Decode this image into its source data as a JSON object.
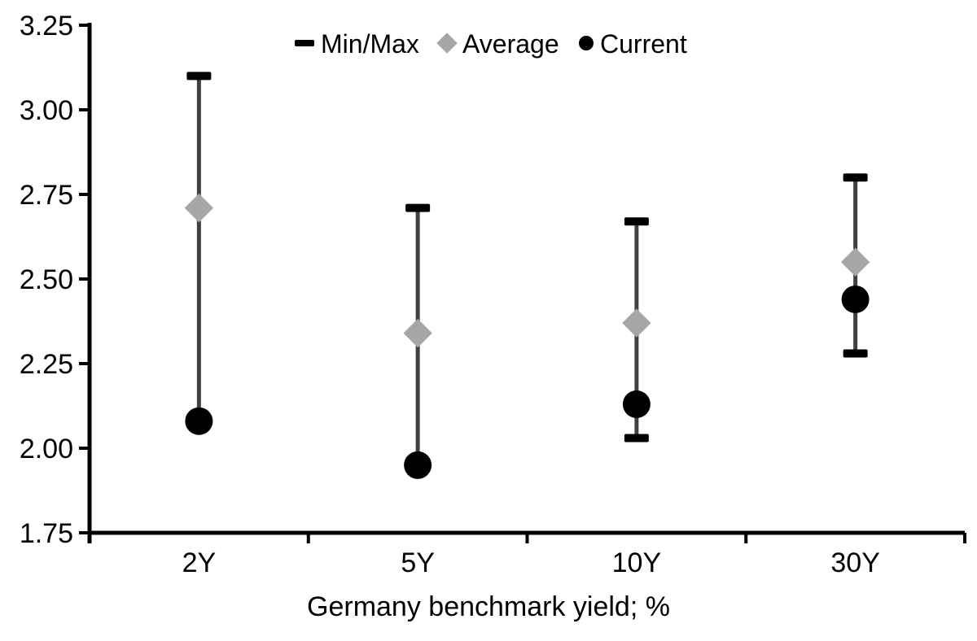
{
  "page": {
    "background": "#ffffff"
  },
  "chart_data": {
    "type": "scatter",
    "subtype": "min-max-range-with-average-and-current",
    "title": "",
    "xlabel": "Germany benchmark yield; %",
    "ylabel": "",
    "ylim": [
      1.75,
      3.25
    ],
    "yticks": [
      3.25,
      3.0,
      2.75,
      2.5,
      2.25,
      2.0,
      1.75
    ],
    "ytick_labels": [
      "3.25",
      "3.00",
      "2.75",
      "2.50",
      "2.25",
      "2.00",
      "1.75"
    ],
    "grid": false,
    "legend_position": "top",
    "legend": [
      "Min/Max",
      "Average",
      "Current"
    ],
    "categories": [
      "2Y",
      "5Y",
      "10Y",
      "30Y"
    ],
    "series": [
      {
        "name": "Min/Max",
        "type": "range",
        "min": [
          2.08,
          1.95,
          2.03,
          2.28
        ],
        "max": [
          3.1,
          2.71,
          2.67,
          2.8
        ],
        "min_cap_visible": [
          false,
          false,
          true,
          true
        ]
      },
      {
        "name": "Average",
        "type": "point",
        "marker": "diamond",
        "values": [
          2.71,
          2.34,
          2.37,
          2.55
        ]
      },
      {
        "name": "Current",
        "type": "point",
        "marker": "circle",
        "values": [
          2.08,
          1.95,
          2.13,
          2.44
        ]
      }
    ],
    "colors": {
      "range_line": "#404040",
      "range_cap": "#000000",
      "average_marker": "#a6a6a6",
      "current_marker": "#000000",
      "axis": "#000000",
      "text": "#000000",
      "background": "#ffffff"
    }
  }
}
